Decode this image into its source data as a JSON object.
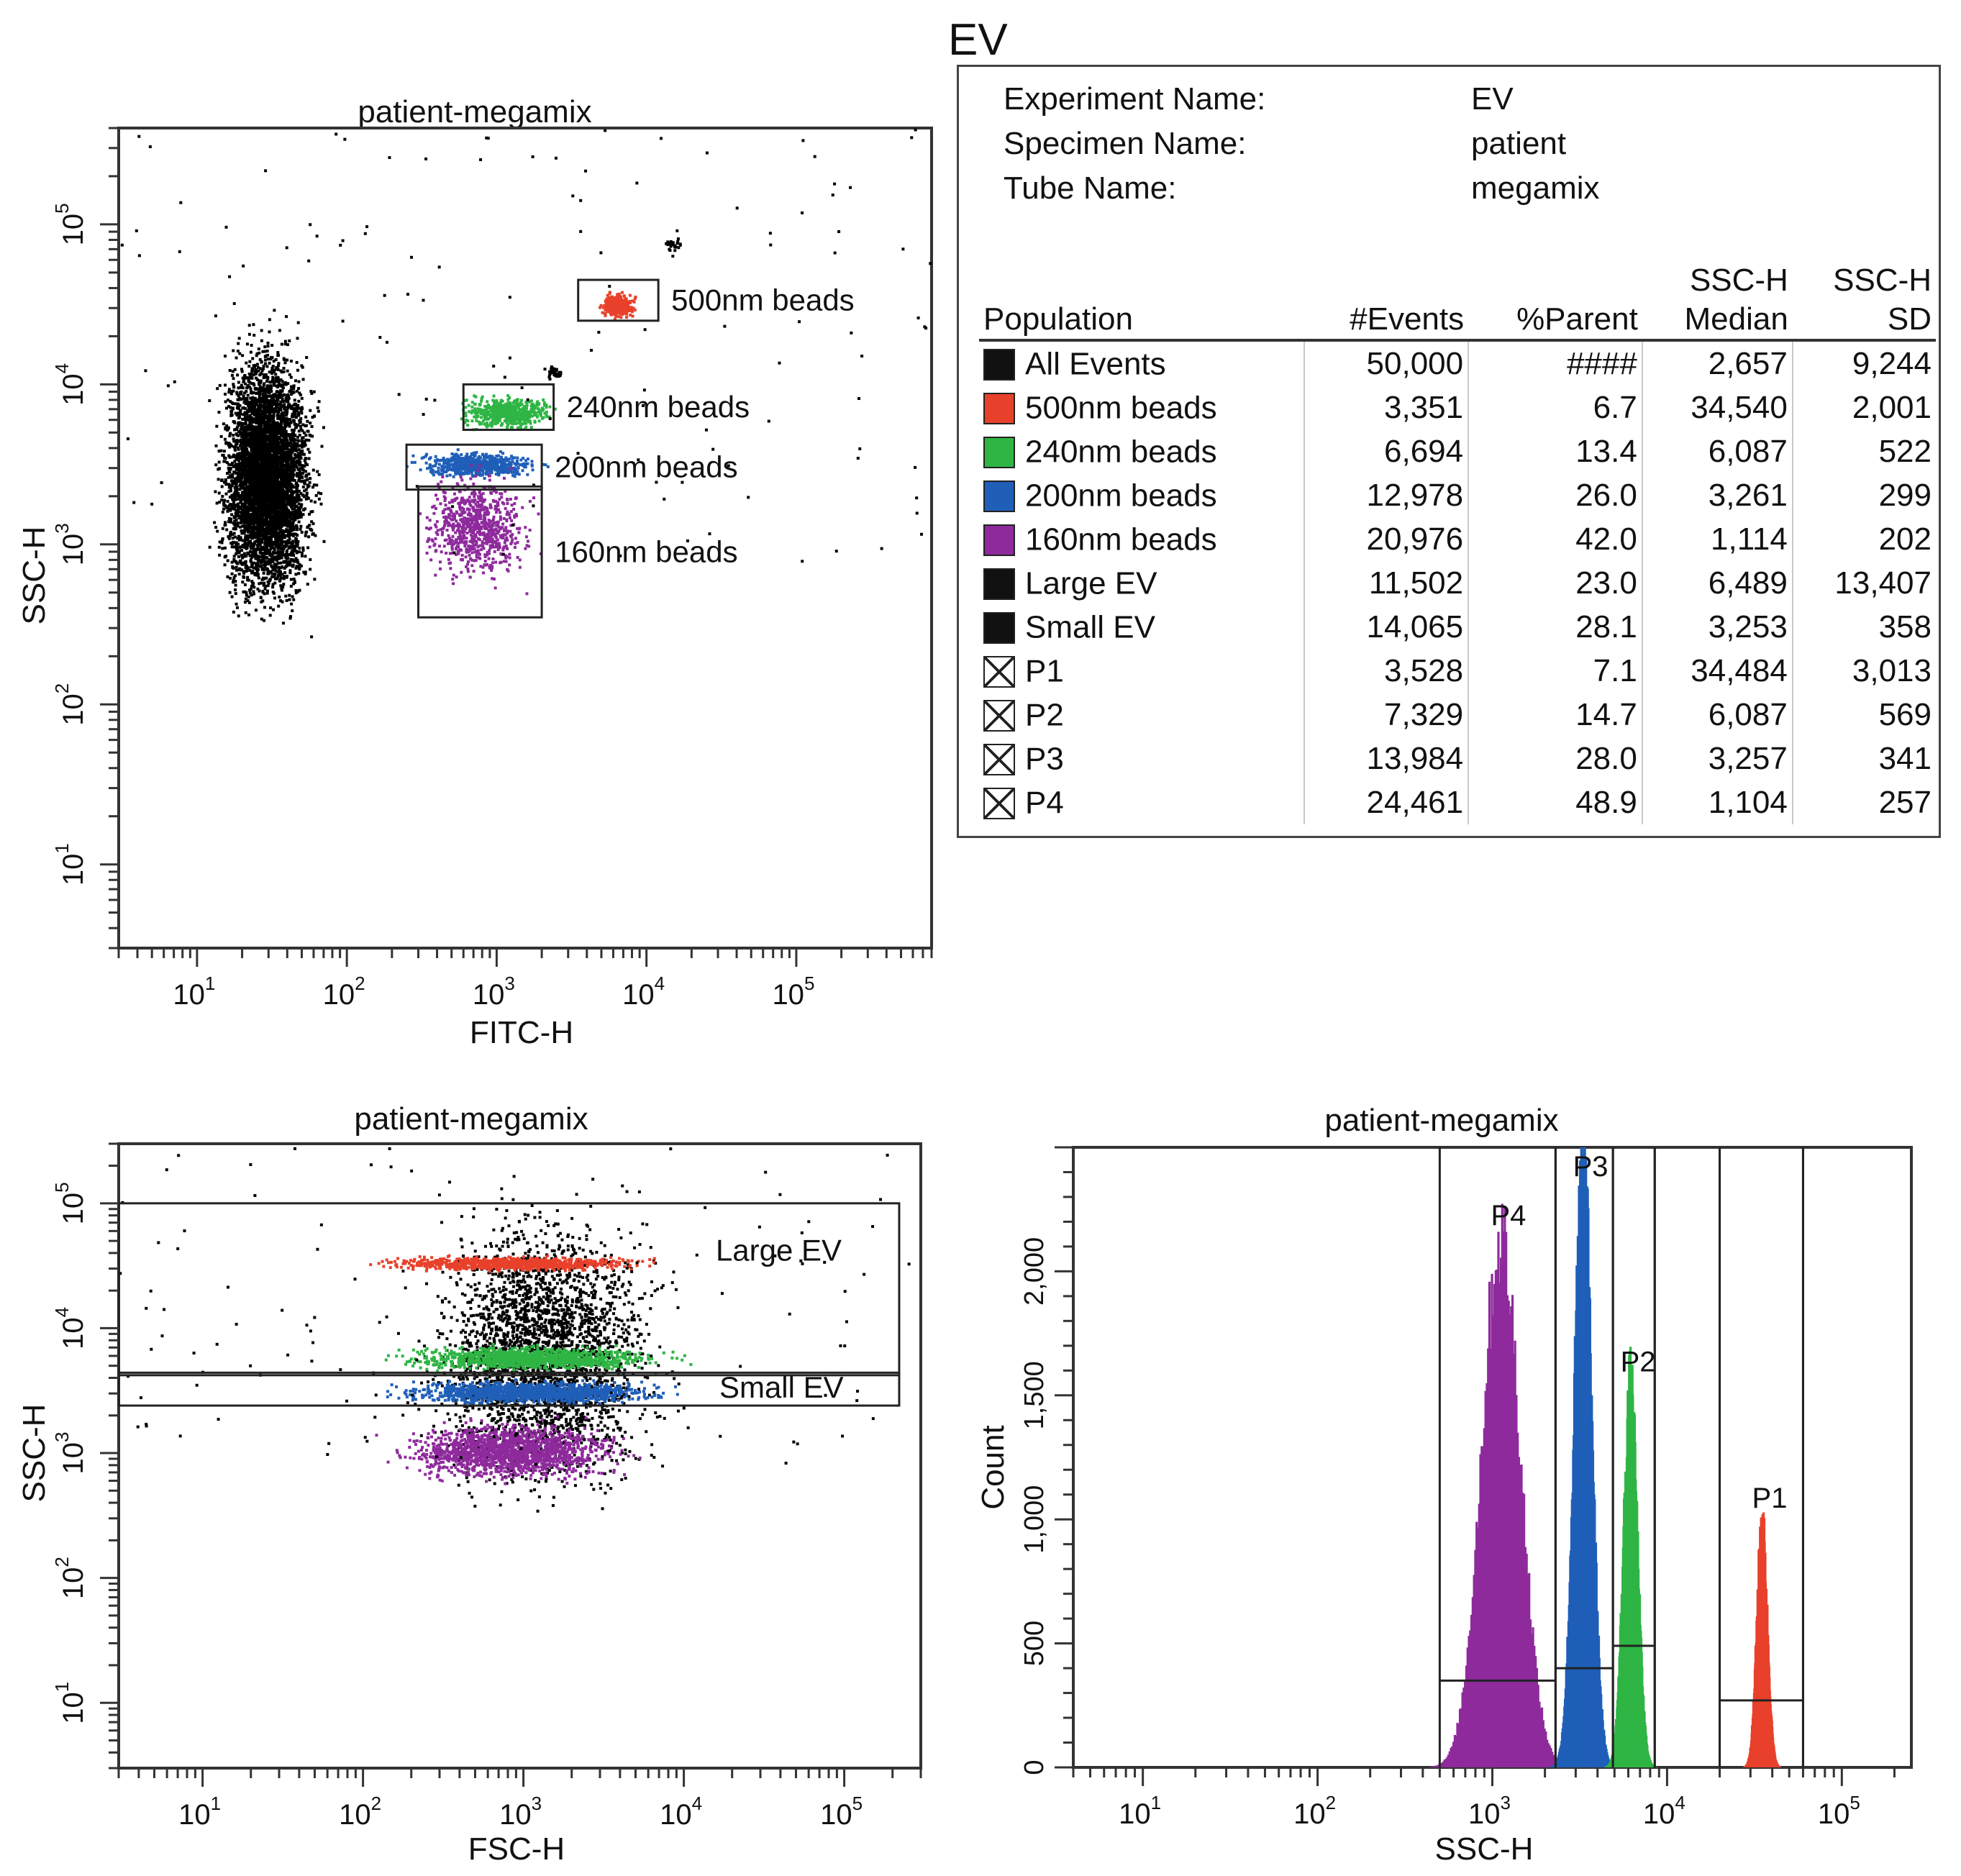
{
  "chart_data": [
    {
      "id": "fitc-ssc",
      "type": "scatter",
      "title": "patient-megamix",
      "xlabel": "FITC-H",
      "ylabel": "SSC-H",
      "x_scale": "log",
      "y_scale": "log",
      "xlim": [
        3,
        800000
      ],
      "ylim": [
        3,
        400000
      ],
      "x_ticks": [
        {
          "base": "10",
          "exp": "1",
          "value": 10
        },
        {
          "base": "10",
          "exp": "2",
          "value": 100
        },
        {
          "base": "10",
          "exp": "3",
          "value": 1000
        },
        {
          "base": "10",
          "exp": "4",
          "value": 10000
        },
        {
          "base": "10",
          "exp": "5",
          "value": 100000
        }
      ],
      "y_ticks": [
        {
          "base": "10",
          "exp": "1",
          "value": 10
        },
        {
          "base": "10",
          "exp": "2",
          "value": 100
        },
        {
          "base": "10",
          "exp": "3",
          "value": 1000
        },
        {
          "base": "10",
          "exp": "4",
          "value": 10000
        },
        {
          "base": "10",
          "exp": "5",
          "value": 100000
        }
      ],
      "clusters": [
        {
          "name": "All Events",
          "color": "#000000",
          "x": [
            15,
            55
          ],
          "y": [
            500,
            15000
          ],
          "count": 5200
        },
        {
          "name": "500nm beads",
          "color": "#e8412b",
          "x": [
            5000,
            8000
          ],
          "y": [
            27000,
            37000
          ],
          "count": 380
        },
        {
          "name": "240nm beads",
          "color": "#2fb544",
          "x": [
            600,
            2200
          ],
          "y": [
            5500,
            8500
          ],
          "count": 520
        },
        {
          "name": "200nm beads",
          "color": "#1f5fb8",
          "x": [
            300,
            1700
          ],
          "y": [
            2700,
            3800
          ],
          "count": 620
        },
        {
          "name": "160nm beads",
          "color": "#8e2a9c",
          "x": [
            350,
            1500
          ],
          "y": [
            650,
            2700
          ],
          "count": 760
        },
        {
          "name": "",
          "color": "#000000",
          "x": [
            2100,
            2700
          ],
          "y": [
            11000,
            13000
          ],
          "count": 40
        },
        {
          "name": "",
          "color": "#000000",
          "x": [
            13000,
            17000
          ],
          "y": [
            70000,
            82000
          ],
          "count": 25
        }
      ],
      "gates": [
        {
          "label": "500nm beads",
          "x": [
            3500,
            12000
          ],
          "y": [
            25000,
            45000
          ]
        },
        {
          "label": "240nm beads",
          "x": [
            600,
            2400
          ],
          "y": [
            5200,
            10000
          ]
        },
        {
          "label": "200nm beads",
          "x": [
            250,
            2000
          ],
          "y": [
            2200,
            4200
          ]
        },
        {
          "label": "160nm beads",
          "x": [
            300,
            2000
          ],
          "y": [
            350,
            2300
          ]
        }
      ]
    },
    {
      "id": "fsc-ssc",
      "type": "scatter",
      "title": "patient-megamix",
      "xlabel": "FSC-H",
      "ylabel": "SSC-H",
      "x_scale": "log",
      "y_scale": "log",
      "xlim": [
        3,
        300000
      ],
      "ylim": [
        3,
        300000
      ],
      "x_ticks": [
        {
          "base": "10",
          "exp": "1",
          "value": 10
        },
        {
          "base": "10",
          "exp": "2",
          "value": 100
        },
        {
          "base": "10",
          "exp": "3",
          "value": 1000
        },
        {
          "base": "10",
          "exp": "4",
          "value": 10000
        },
        {
          "base": "10",
          "exp": "5",
          "value": 100000
        }
      ],
      "y_ticks": [
        {
          "base": "10",
          "exp": "1",
          "value": 10
        },
        {
          "base": "10",
          "exp": "2",
          "value": 100
        },
        {
          "base": "10",
          "exp": "3",
          "value": 1000
        },
        {
          "base": "10",
          "exp": "4",
          "value": 10000
        },
        {
          "base": "10",
          "exp": "5",
          "value": 100000
        }
      ],
      "clusters": [
        {
          "name": "All Events",
          "color": "#000000",
          "x": [
            300,
            6000
          ],
          "y": [
            600,
            70000
          ],
          "count": 2800
        },
        {
          "name": "500nm beads",
          "color": "#e8412b",
          "x": [
            150,
            5000
          ],
          "y": [
            30000,
            38000
          ],
          "count": 820
        },
        {
          "name": "240nm beads",
          "color": "#2fb544",
          "x": [
            200,
            6000
          ],
          "y": [
            4800,
            7200
          ],
          "count": 1150
        },
        {
          "name": "200nm beads",
          "color": "#1f5fb8",
          "x": [
            200,
            6000
          ],
          "y": [
            2600,
            3800
          ],
          "count": 1250
        },
        {
          "name": "160nm beads",
          "color": "#8e2a9c",
          "x": [
            200,
            3500
          ],
          "y": [
            650,
            1700
          ],
          "count": 1600
        }
      ],
      "gates": [
        {
          "label": "Large EV",
          "x": [
            3,
            220000
          ],
          "y": [
            4200,
            100000
          ]
        },
        {
          "label": "Small EV",
          "x": [
            3,
            220000
          ],
          "y": [
            2400,
            4400
          ]
        }
      ]
    },
    {
      "id": "ssc-histogram",
      "type": "area",
      "title": "patient-megamix",
      "xlabel": "SSC-H",
      "ylabel": "Count",
      "x_scale": "log",
      "xlim": [
        4,
        250000
      ],
      "ylim": [
        0,
        2500
      ],
      "x_ticks": [
        {
          "base": "10",
          "exp": "1",
          "value": 10
        },
        {
          "base": "10",
          "exp": "2",
          "value": 100
        },
        {
          "base": "10",
          "exp": "3",
          "value": 1000
        },
        {
          "base": "10",
          "exp": "4",
          "value": 10000
        },
        {
          "base": "10",
          "exp": "5",
          "value": 100000
        }
      ],
      "y_ticks": [
        {
          "label": "0",
          "value": 0
        },
        {
          "label": "500",
          "value": 500
        },
        {
          "label": "1,000",
          "value": 1000
        },
        {
          "label": "1,500",
          "value": 1500
        },
        {
          "label": "2,000",
          "value": 2000
        }
      ],
      "series": [
        {
          "name": "P4",
          "color": "#8e2a9c",
          "peak_x": 1104,
          "width_decades": 0.11,
          "peak_count": 2140
        },
        {
          "name": "P3",
          "color": "#1f5fb8",
          "peak_x": 3257,
          "width_decades": 0.05,
          "peak_count": 2460
        },
        {
          "name": "P2",
          "color": "#2fb544",
          "peak_x": 6087,
          "width_decades": 0.04,
          "peak_count": 1550
        },
        {
          "name": "P1",
          "color": "#e8412b",
          "peak_x": 34484,
          "width_decades": 0.03,
          "peak_count": 1000
        }
      ],
      "gates": [
        {
          "label": "P4",
          "x": [
            500,
            2300
          ],
          "level": 350
        },
        {
          "label": "P3",
          "x": [
            2300,
            4900
          ],
          "level": 400
        },
        {
          "label": "P2",
          "x": [
            4900,
            8500
          ],
          "level": 490
        },
        {
          "label": "P1",
          "x": [
            20000,
            60000
          ],
          "level": 270
        }
      ],
      "extra_lines": [
        8500,
        20000,
        60000
      ]
    }
  ],
  "stats": {
    "title": "EV",
    "experiment_label": "Experiment Name:",
    "experiment_value": "EV",
    "specimen_label": "Specimen Name:",
    "specimen_value": "patient",
    "tube_label": "Tube Name:",
    "tube_value": "megamix",
    "headers": {
      "population": "Population",
      "events": "#Events",
      "parent": "%Parent",
      "median_top": "SSC-H",
      "median": "Median",
      "sd_top": "SSC-H",
      "sd": "SD"
    },
    "rows": [
      {
        "name": "All Events",
        "color": "#111111",
        "marker": "fill",
        "events": "50,000",
        "parent": "####",
        "median": "2,657",
        "sd": "9,244"
      },
      {
        "name": "500nm beads",
        "color": "#e8412b",
        "marker": "fill",
        "events": "3,351",
        "parent": "6.7",
        "median": "34,540",
        "sd": "2,001"
      },
      {
        "name": "240nm beads",
        "color": "#2fb544",
        "marker": "fill",
        "events": "6,694",
        "parent": "13.4",
        "median": "6,087",
        "sd": "522"
      },
      {
        "name": "200nm beads",
        "color": "#1f5fb8",
        "marker": "fill",
        "events": "12,978",
        "parent": "26.0",
        "median": "3,261",
        "sd": "299"
      },
      {
        "name": "160nm beads",
        "color": "#8e2a9c",
        "marker": "fill",
        "events": "20,976",
        "parent": "42.0",
        "median": "1,114",
        "sd": "202"
      },
      {
        "name": "Large EV",
        "color": "#111111",
        "marker": "fill",
        "events": "11,502",
        "parent": "23.0",
        "median": "6,489",
        "sd": "13,407"
      },
      {
        "name": "Small EV",
        "color": "#111111",
        "marker": "fill",
        "events": "14,065",
        "parent": "28.1",
        "median": "3,253",
        "sd": "358"
      },
      {
        "name": "P1",
        "color": "#ffffff",
        "marker": "x",
        "events": "3,528",
        "parent": "7.1",
        "median": "34,484",
        "sd": "3,013"
      },
      {
        "name": "P2",
        "color": "#ffffff",
        "marker": "x",
        "events": "7,329",
        "parent": "14.7",
        "median": "6,087",
        "sd": "569"
      },
      {
        "name": "P3",
        "color": "#ffffff",
        "marker": "x",
        "events": "13,984",
        "parent": "28.0",
        "median": "3,257",
        "sd": "341"
      },
      {
        "name": "P4",
        "color": "#ffffff",
        "marker": "x",
        "events": "24,461",
        "parent": "48.9",
        "median": "1,104",
        "sd": "257"
      }
    ]
  }
}
